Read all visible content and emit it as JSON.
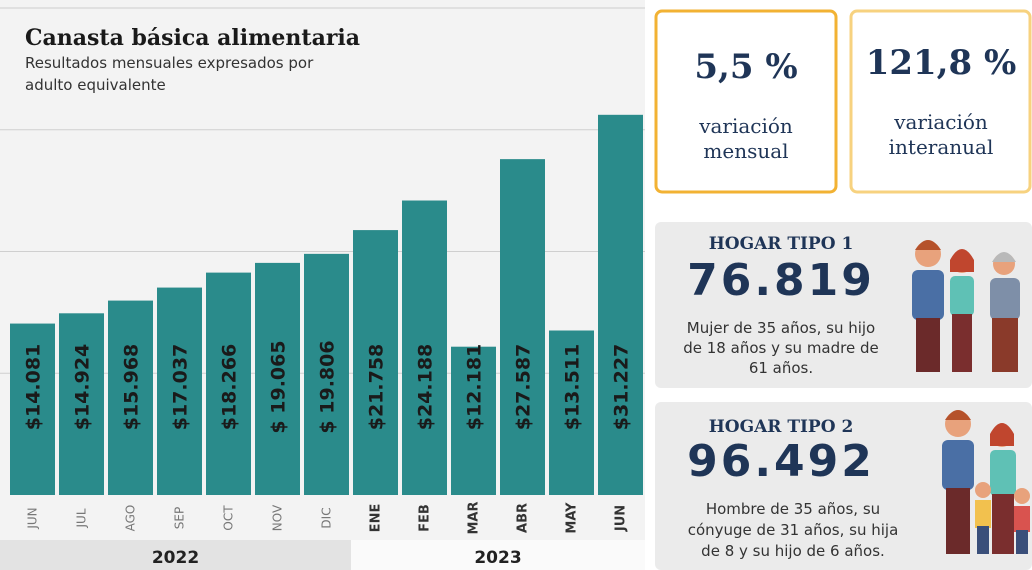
{
  "chart_data": {
    "type": "bar",
    "title": "Canasta básica alimentaria",
    "subtitle": [
      "Resultados mensuales expresados por",
      "adulto equivalente"
    ],
    "categories": [
      "JUN",
      "JUL",
      "AGO",
      "SEP",
      "OCT",
      "NOV",
      "DIC",
      "ENE",
      "FEB",
      "MAR",
      "ABR",
      "MAY",
      "JUN"
    ],
    "values": [
      14081,
      14924,
      15968,
      17037,
      18266,
      19065,
      19806,
      21758,
      24188,
      12181,
      27587,
      13511,
      31227
    ],
    "value_labels": [
      "$14.081",
      "$14.924",
      "$15.968",
      "$17.037",
      "$18.266",
      "$ 19.065",
      "$ 19.806",
      "$21.758",
      "$24.188",
      "$12.181",
      "$27.587",
      "$13.511",
      "$31.227"
    ],
    "year_groups": [
      {
        "label": "2022",
        "span": 7
      },
      {
        "label": "2023",
        "span": 6
      }
    ],
    "color": "#2a8b8b",
    "ylim": [
      0,
      40000
    ],
    "yticks": [
      10000,
      20000,
      30000
    ],
    "grid": true
  },
  "cards": [
    {
      "value": "5,5 %",
      "label": [
        "variación",
        "mensual"
      ]
    },
    {
      "value": "121,8 %",
      "label": [
        "variación",
        "interanual"
      ]
    }
  ],
  "households": [
    {
      "title": "HOGAR TIPO 1",
      "amount": "76.819",
      "description": [
        "Mujer de 35 años, su hijo",
        "de 18 años y su madre de",
        "61 años."
      ]
    },
    {
      "title": "HOGAR TIPO 2",
      "amount": "96.492",
      "description": [
        "Hombre de 35 años, su",
        "cónyuge de 31 años, su hija",
        "de 8 y su hijo de 6 años."
      ]
    }
  ]
}
